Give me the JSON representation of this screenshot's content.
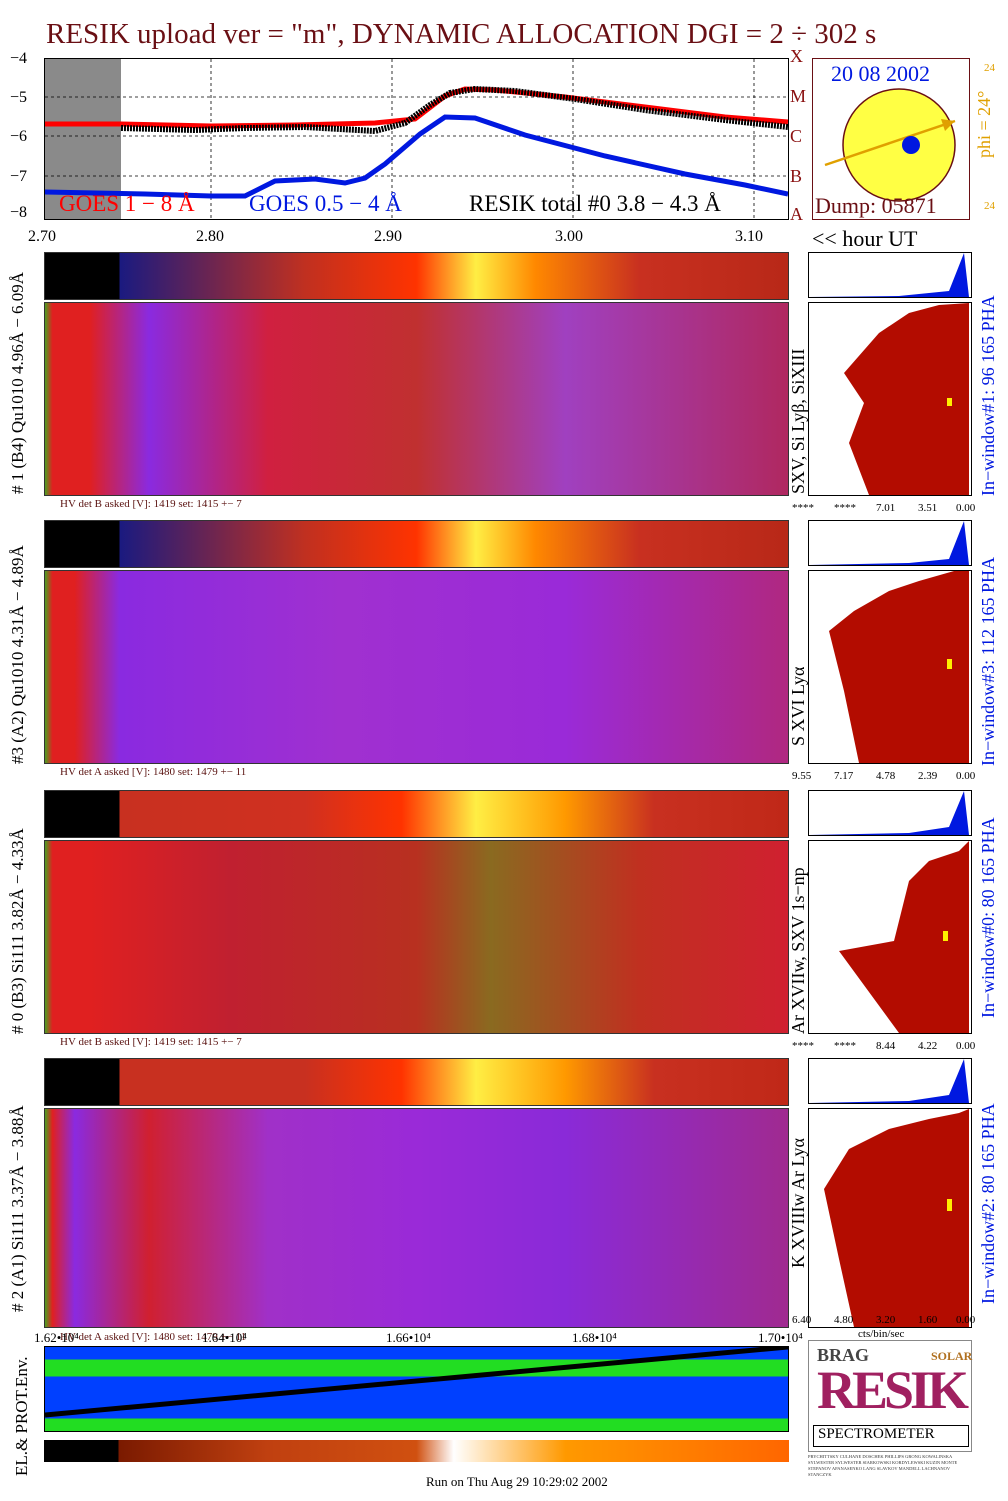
{
  "title": "RESIK upload ver = \"m\", DYNAMIC ALLOCATION  DGI =   2 ÷ 302 s",
  "lightcurve": {
    "y_ticks": [
      "−4",
      "−5",
      "−6",
      "−7",
      "−8"
    ],
    "x_ticks": [
      "2.70",
      "2.80",
      "2.90",
      "3.00",
      "3.10"
    ],
    "x_unit_label": "<< hour UT",
    "goes_long_label": "GOES 1 − 8 Å",
    "goes_short_label": "GOES 0.5 − 4 Å",
    "resik_label": "RESIK total #0  3.8 − 4.3 Å",
    "class_letters": [
      "A",
      "B",
      "C",
      "M",
      "X"
    ],
    "colors": {
      "goes_long": "#ff0000",
      "goes_short": "#0018e0",
      "resik": "#000000"
    }
  },
  "sun_panel": {
    "date": "20 08 2002",
    "phi_label": "phi = 24°",
    "side_top": "24",
    "side_bottom": "24",
    "dump": "Dump: 05871"
  },
  "detectors": [
    {
      "left_label": "# 1 (B4) Qu1010  4.96Å − 6.09Å",
      "line_label": "SXV, Si Lyβ, SiXIII",
      "window_label": "In−window#1:   96 165  PHA",
      "hv_label": "HV det B asked [V]:  1419 set:  1415 +−    7",
      "scale": [
        "****",
        "****",
        "7.01",
        "3.51",
        "0.00"
      ]
    },
    {
      "left_label": "#3 (A2) Qu1010  4.31Å − 4.89Å",
      "line_label": "S XVI Lyα",
      "window_label": "In−window#3:   112 165  PHA",
      "hv_label": "HV det A asked [V]:  1480 set:  1479 +−   11",
      "scale": [
        "9.55",
        "7.17",
        "4.78",
        "2.39",
        "0.00"
      ]
    },
    {
      "left_label": "# 0 (B3) Si111  3.82Å − 4.33Å",
      "line_label": "Ar XVIIw,  SXV 1s−np",
      "window_label": "In−window#0:   80 165  PHA",
      "hv_label": "HV det B asked [V]:  1419 set:  1415 +−    7",
      "scale": [
        "****",
        "****",
        "8.44",
        "4.22",
        "0.00"
      ]
    },
    {
      "left_label": "# 2 (A1) Si111  3.37Å − 3.88Å",
      "line_label": "K XVIIIw  Ar Lyα",
      "window_label": "In−window#2:   80 165  PHA",
      "hv_label": "HV det A asked [V]:  1480 set:  1479 +−   11",
      "scale": [
        "6.40",
        "4.80",
        "3.20",
        "1.60",
        "0.00"
      ],
      "scale_unit": "cts/bin/sec"
    }
  ],
  "bottom_axis": {
    "ticks": [
      "1.62•10⁴",
      "1.64•10⁴",
      "1.66•10⁴",
      "1.68•10⁴",
      "1.70•10⁴"
    ]
  },
  "env_panel": {
    "label": "EL.& PROT.Env."
  },
  "logo": {
    "letters": "RESIK",
    "small": [
      "BRAG",
      "SOLAR"
    ],
    "caption": "SPECTROMETER",
    "credits": "PRYCHITTSKY  CULHANE  DOSCHEK  PHILLIPS  GRONG  KOWALINSKA  SYLWESTER  SYLWESTER  SIARKOWSKI  KORDYLEWSKI  KUZIN  MONTE  STEPANOV  APANASENKO  LANG  SLAVKOV  MANDELL  LACHNANOV  STANCZYK"
  },
  "footer": "Run on Thu Aug 29 10:29:02 2002"
}
